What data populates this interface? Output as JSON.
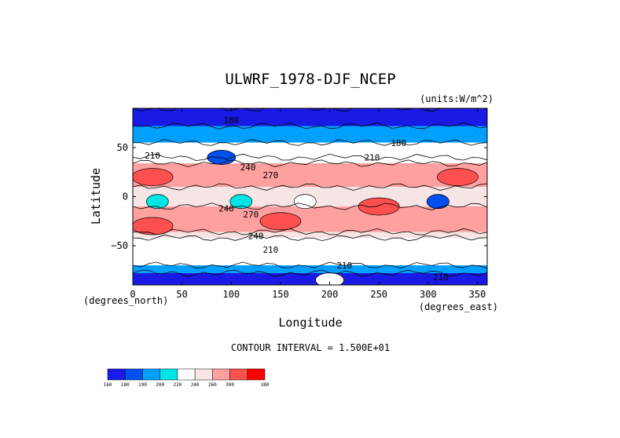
{
  "chart_data": {
    "type": "heatmap",
    "title": "ULWRF_1978-DJF_NCEP",
    "units_label": "(units:W/m^2)",
    "xlabel": "Longitude",
    "ylabel": "Latitude",
    "x_unit_label": "(degrees_east)",
    "y_unit_label": "(degrees_north)",
    "xlim": [
      0,
      360
    ],
    "ylim": [
      -90,
      90
    ],
    "x_ticks": [
      "0",
      "50",
      "100",
      "150",
      "200",
      "250",
      "300",
      "350"
    ],
    "y_ticks": [
      "50",
      "0",
      "−50"
    ],
    "contour_interval_text": "CONTOUR INTERVAL = 1.500E+01",
    "contour_labels": [
      {
        "text": "180",
        "lon": 100,
        "lat": 78
      },
      {
        "text": "210",
        "lon": 20,
        "lat": 42
      },
      {
        "text": "240",
        "lon": 117,
        "lat": 30
      },
      {
        "text": "210",
        "lon": 243,
        "lat": 40
      },
      {
        "text": "180",
        "lon": 270,
        "lat": 55
      },
      {
        "text": "270",
        "lon": 140,
        "lat": 22
      },
      {
        "text": "240",
        "lon": 95,
        "lat": -12
      },
      {
        "text": "270",
        "lon": 120,
        "lat": -18
      },
      {
        "text": "240",
        "lon": 125,
        "lat": -40
      },
      {
        "text": "210",
        "lon": 140,
        "lat": -54
      },
      {
        "text": "210",
        "lon": 215,
        "lat": -70
      },
      {
        "text": "210",
        "lon": 313,
        "lat": -82
      }
    ],
    "colorbar": {
      "levels": [
        "160",
        "180",
        "190",
        "200",
        "220",
        "240",
        "260",
        "300",
        "380"
      ],
      "colors": [
        "#1a1ae6",
        "#0050f0",
        "#00a0ff",
        "#00e6e6",
        "#ffffff",
        "#f7e4e4",
        "#ffa0a0",
        "#ff5050",
        "#ff0000"
      ]
    },
    "bands": [
      {
        "lat": [
          72,
          90
        ],
        "value": 175
      },
      {
        "lat": [
          55,
          72
        ],
        "value": 195
      },
      {
        "lat": [
          40,
          55
        ],
        "value": 210
      },
      {
        "lat": [
          34,
          40
        ],
        "value": 230
      },
      {
        "lat": [
          10,
          34
        ],
        "value": 270
      },
      {
        "lat": [
          -10,
          10
        ],
        "value": 250
      },
      {
        "lat": [
          -36,
          -10
        ],
        "value": 265
      },
      {
        "lat": [
          -42,
          -36
        ],
        "value": 235
      },
      {
        "lat": [
          -70,
          -42
        ],
        "value": 210
      },
      {
        "lat": [
          -78,
          -70
        ],
        "value": 195
      },
      {
        "lat": [
          -90,
          -78
        ],
        "value": 175
      }
    ],
    "features": [
      {
        "shape": "convective",
        "lon": 25,
        "lat": -5,
        "value": 205
      },
      {
        "shape": "convective",
        "lon": 110,
        "lat": -5,
        "value": 205
      },
      {
        "shape": "convective",
        "lon": 175,
        "lat": -5,
        "value": 210
      },
      {
        "shape": "convective",
        "lon": 310,
        "lat": -5,
        "value": 200
      },
      {
        "shape": "convective",
        "lon": 310,
        "lat": -5,
        "value": 185
      },
      {
        "shape": "desert",
        "lon": 20,
        "lat": 20,
        "value": 300
      },
      {
        "shape": "desert",
        "lon": 250,
        "lat": -10,
        "value": 300
      },
      {
        "shape": "desert",
        "lon": 330,
        "lat": 20,
        "value": 290
      },
      {
        "shape": "desert",
        "lon": 150,
        "lat": -25,
        "value": 300
      },
      {
        "shape": "desert",
        "lon": 20,
        "lat": -30,
        "value": 285
      },
      {
        "shape": "cold",
        "lon": 90,
        "lat": 40,
        "value": 185
      },
      {
        "shape": "cold",
        "lon": 200,
        "lat": -85,
        "value": 230
      }
    ]
  }
}
